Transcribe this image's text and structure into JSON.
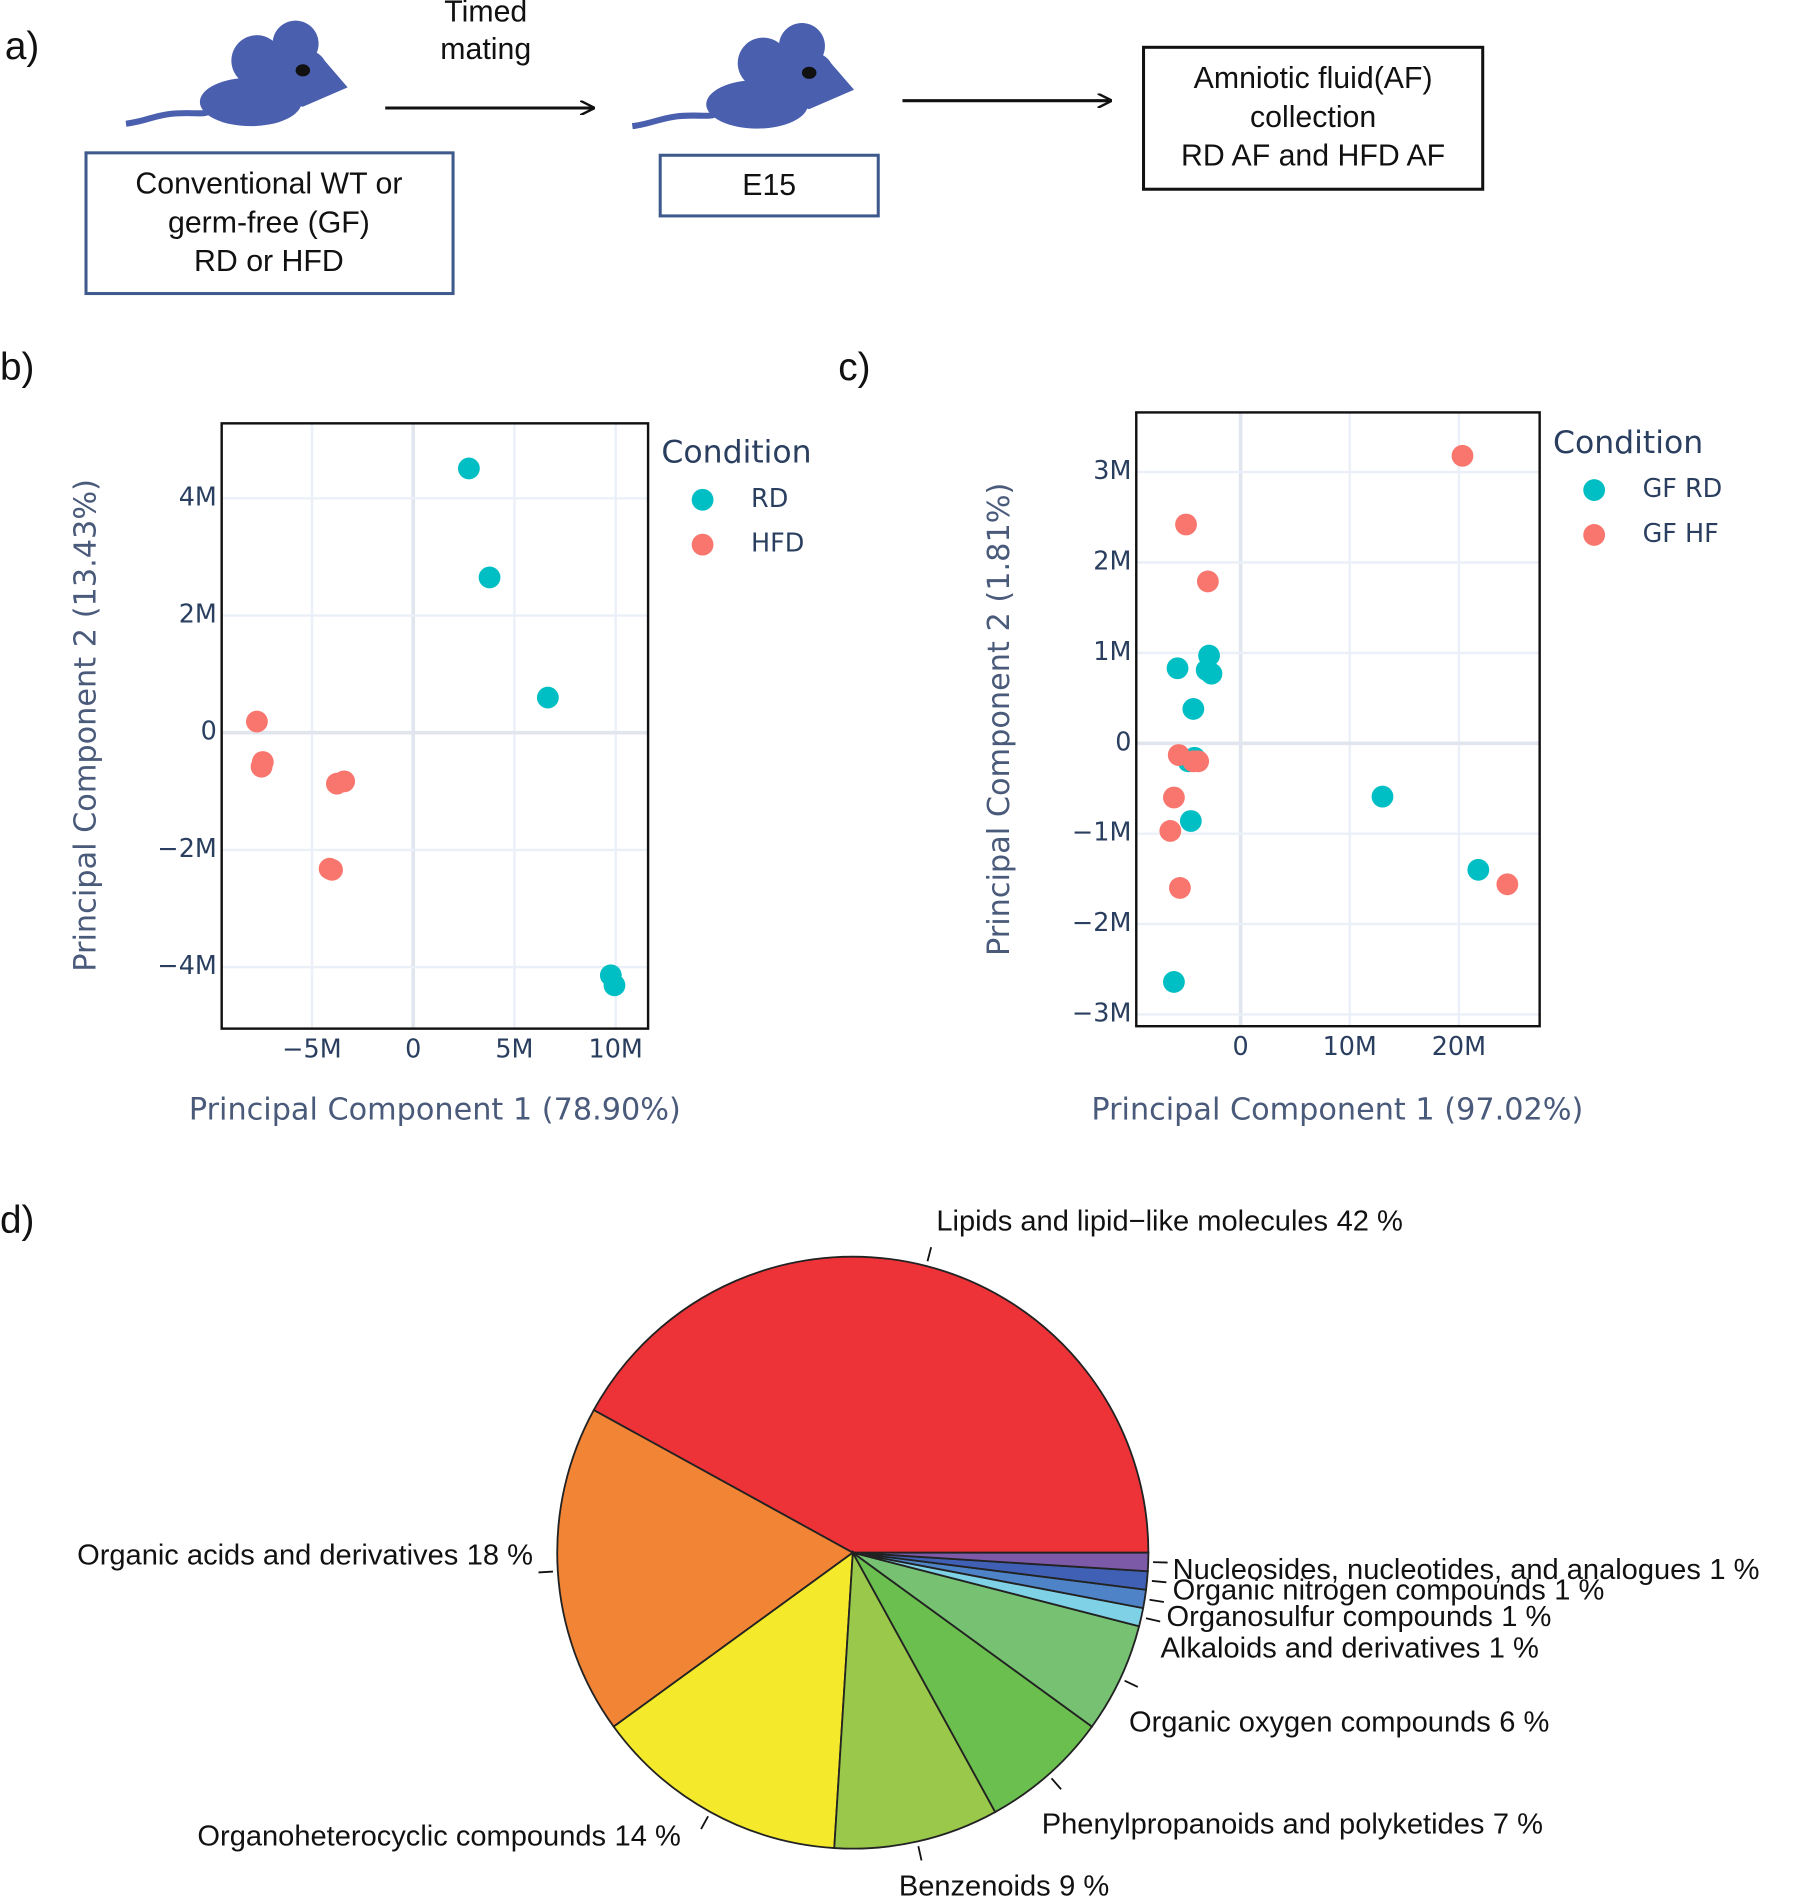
{
  "panel_labels": [
    "a)",
    "b)",
    "c)",
    "d)"
  ],
  "diagram": {
    "arrow_label": [
      "Timed",
      "mating"
    ],
    "boxes": [
      {
        "lines": [
          "Conventional WT or",
          "germ-free (GF)",
          "RD or HFD"
        ]
      },
      {
        "lines": [
          "E15"
        ]
      },
      {
        "lines": [
          "Amniotic fluid(AF)",
          "collection",
          "RD AF and HFD AF"
        ]
      }
    ]
  },
  "chart_data": [
    {
      "type": "scatter",
      "xlabel": "Principal Component 1 (78.90%)",
      "ylabel": "Principal Component 2 (13.43%)",
      "legend_title": "Condition",
      "xlim": [
        -9460000,
        11600000
      ],
      "ylim": [
        -5050000,
        5280000
      ],
      "xticks": [
        {
          "value": -5000000,
          "label": "−5M"
        },
        0,
        {
          "value": 5000000,
          "label": "5M"
        },
        {
          "value": 10000000,
          "label": "10M"
        }
      ],
      "yticks": [
        {
          "value": -4000000,
          "label": "−4M"
        },
        {
          "value": -2000000,
          "label": "−2M"
        },
        0,
        {
          "value": 2000000,
          "label": "2M"
        },
        {
          "value": 4000000,
          "label": "4M"
        }
      ],
      "grid": true,
      "series": [
        {
          "name": "RD",
          "color": "#00BFC4",
          "x": [
            2750000,
            3770000,
            6650000,
            9760000,
            9940000
          ],
          "y": [
            4510000,
            2650000,
            600000,
            -4140000,
            -4310000
          ]
        },
        {
          "name": "HFD",
          "color": "#F8766D",
          "x": [
            -7720000,
            -7430000,
            -7490000,
            -3770000,
            -3410000,
            -4130000,
            -4010000
          ],
          "y": [
            190000,
            -500000,
            -580000,
            -870000,
            -830000,
            -2320000,
            -2340000
          ]
        }
      ]
    },
    {
      "type": "scatter",
      "xlabel": "Principal Component 1 (97.02%)",
      "ylabel": "Principal Component 2 (1.81%)",
      "legend_title": "Condition",
      "xlim": [
        -9560000,
        27400000
      ],
      "ylim": [
        -3130000,
        3660000
      ],
      "xticks": [
        0,
        {
          "value": 10000000,
          "label": "10M"
        },
        {
          "value": 20000000,
          "label": "20M"
        }
      ],
      "yticks": [
        {
          "value": -3000000,
          "label": "−3M"
        },
        {
          "value": -2000000,
          "label": "−2M"
        },
        {
          "value": -1000000,
          "label": "−1M"
        },
        0,
        {
          "value": 1000000,
          "label": "1M"
        },
        {
          "value": 2000000,
          "label": "2M"
        },
        {
          "value": 3000000,
          "label": "3M"
        }
      ],
      "grid": true,
      "series": [
        {
          "name": "GF RD",
          "color": "#00BFC4",
          "x": [
            -5780000,
            -2890000,
            -3110000,
            -2670000,
            -4330000,
            -4220000,
            -4780000,
            -4560000,
            13000000,
            21780000,
            -6110000
          ],
          "y": [
            830000,
            970000,
            810000,
            770000,
            380000,
            -160000,
            -200000,
            -860000,
            -590000,
            -1400000,
            -2640000
          ]
        },
        {
          "name": "GF HF",
          "color": "#F8766D",
          "x": [
            20330000,
            -5000000,
            -3000000,
            -5670000,
            -4330000,
            -3890000,
            -6110000,
            -6440000,
            -5560000,
            24440000
          ],
          "y": [
            3180000,
            2420000,
            1790000,
            -130000,
            -200000,
            -200000,
            -600000,
            -970000,
            -1600000,
            -1560000
          ]
        }
      ]
    },
    {
      "type": "pie",
      "categories": [
        "Lipids and lipid−like molecules",
        "Organic acids and derivatives",
        "Organoheterocyclic compounds",
        "Benzenoids",
        "Phenylpropanoids and polyketides",
        "Organic oxygen compounds",
        "Alkaloids and derivatives",
        "Organosulfur compounds",
        "Organic nitrogen compounds",
        "Nucleosides, nucleotides, and analogues"
      ],
      "values": [
        42,
        18,
        14,
        9,
        7,
        6,
        1,
        1,
        1,
        1
      ],
      "value_labels": [
        "42 %",
        "18 %",
        "14 %",
        "9 %",
        "7 %",
        "6 %",
        "1 %",
        "1 %",
        "1 %",
        "1 %"
      ],
      "colors": [
        "#EE3338",
        "#F28535",
        "#F4EA2B",
        "#99C84A",
        "#6BBF4E",
        "#76C172",
        "#7FD1E6",
        "#4E83C8",
        "#4060B5",
        "#7C5AA8"
      ]
    }
  ]
}
